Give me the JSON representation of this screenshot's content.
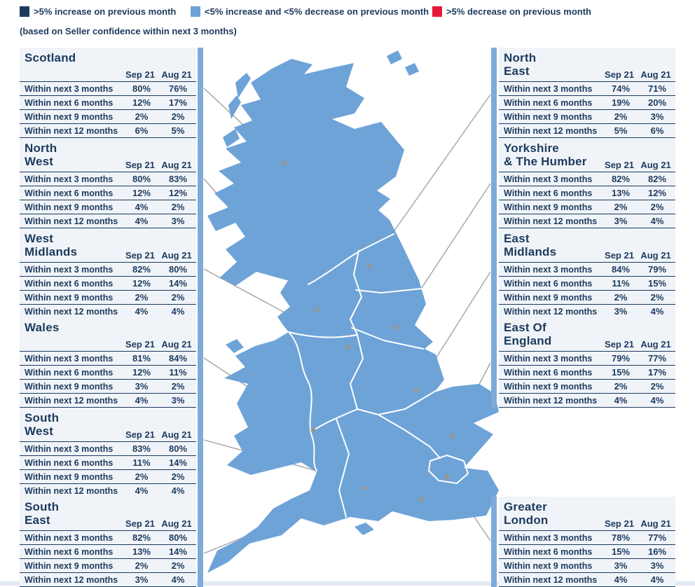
{
  "legend": {
    "items": [
      {
        "name": "increase",
        "label": ">5% increase on previous month",
        "color": "#1c3a5c"
      },
      {
        "name": "stable",
        "label": "<5% increase and <5% decrease on previous month",
        "color": "#6ea3d8"
      },
      {
        "name": "decrease",
        "label": ">5% decrease on previous month",
        "color": "#e51937"
      }
    ],
    "subtitle": "(based on Seller confidence within next 3 months)"
  },
  "map": {
    "name": "united-kingdom-regions-map",
    "fill_color": "#6ea3d8",
    "border_color": "#ffffff",
    "leader_line_color": "#a3a3a3"
  },
  "chart_data": {
    "type": "table",
    "columns": [
      "Sep 21",
      "Aug 21"
    ],
    "rows": [
      "Within next 3 months",
      "Within next 6 months",
      "Within next 9 months",
      "Within next 12 months"
    ],
    "value_format": "percent",
    "regions": [
      {
        "name": "Scotland",
        "sep21": [
          80,
          12,
          2,
          6
        ],
        "aug21": [
          76,
          17,
          2,
          5
        ]
      },
      {
        "name": "North\nWest",
        "sep21": [
          80,
          12,
          4,
          4
        ],
        "aug21": [
          83,
          12,
          2,
          3
        ]
      },
      {
        "name": "West\nMidlands",
        "sep21": [
          82,
          12,
          2,
          4
        ],
        "aug21": [
          80,
          14,
          2,
          4
        ]
      },
      {
        "name": "Wales",
        "sep21": [
          81,
          12,
          3,
          4
        ],
        "aug21": [
          84,
          11,
          2,
          3
        ]
      },
      {
        "name": "South\nWest",
        "sep21": [
          83,
          11,
          2,
          4
        ],
        "aug21": [
          80,
          14,
          2,
          4
        ]
      },
      {
        "name": "South\nEast",
        "sep21": [
          82,
          13,
          2,
          3
        ],
        "aug21": [
          80,
          14,
          2,
          4
        ]
      },
      {
        "name": "North\nEast",
        "sep21": [
          74,
          19,
          2,
          5
        ],
        "aug21": [
          71,
          20,
          3,
          6
        ]
      },
      {
        "name": "Yorkshire\n& The Humber",
        "sep21": [
          82,
          13,
          2,
          3
        ],
        "aug21": [
          82,
          12,
          2,
          4
        ]
      },
      {
        "name": "East\nMidlands",
        "sep21": [
          84,
          11,
          2,
          3
        ],
        "aug21": [
          79,
          15,
          2,
          4
        ]
      },
      {
        "name": "East Of\nEngland",
        "sep21": [
          79,
          15,
          2,
          4
        ],
        "aug21": [
          77,
          17,
          2,
          4
        ]
      },
      {
        "name": "Greater\nLondon",
        "sep21": [
          78,
          15,
          3,
          4
        ],
        "aug21": [
          77,
          16,
          3,
          4
        ]
      }
    ]
  }
}
